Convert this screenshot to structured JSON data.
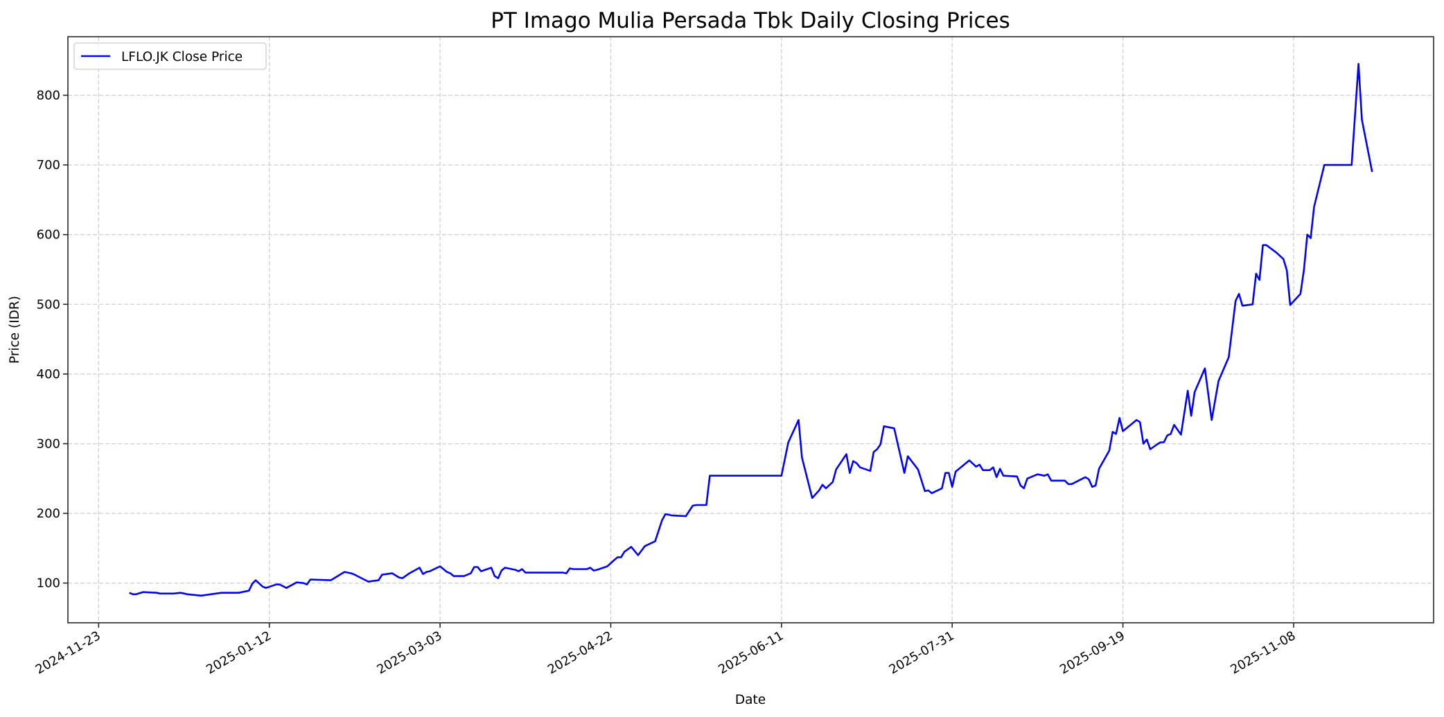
{
  "chart_data": {
    "type": "line",
    "title": "PT Imago Mulia Persada Tbk Daily Closing Prices",
    "xlabel": "Date",
    "ylabel": "Price (IDR)",
    "grid": true,
    "legend_position": "upper left",
    "xlim": [
      "2024-11-14",
      "2025-12-19"
    ],
    "ylim": [
      43,
      884
    ],
    "x_ticks": [
      "2024-11-23",
      "2025-01-12",
      "2025-03-03",
      "2025-04-22",
      "2025-06-11",
      "2025-07-31",
      "2025-09-19",
      "2025-11-08"
    ],
    "y_ticks": [
      100,
      200,
      300,
      400,
      500,
      600,
      700,
      800
    ],
    "series": [
      {
        "name": "LFLO.JK Close Price",
        "color": "#0000ff",
        "x": [
          "2024-12-02",
          "2024-12-03",
          "2024-12-04",
          "2024-12-06",
          "2024-12-10",
          "2024-12-11",
          "2024-12-13",
          "2024-12-15",
          "2024-12-17",
          "2024-12-19",
          "2024-12-23",
          "2024-12-29",
          "2025-01-03",
          "2025-01-06",
          "2025-01-07",
          "2025-01-08",
          "2025-01-10",
          "2025-01-11",
          "2025-01-14",
          "2025-01-15",
          "2025-01-17",
          "2025-01-20",
          "2025-01-22",
          "2025-01-23",
          "2025-01-24",
          "2025-01-30",
          "2025-02-03",
          "2025-02-05",
          "2025-02-06",
          "2025-02-10",
          "2025-02-13",
          "2025-02-14",
          "2025-02-17",
          "2025-02-19",
          "2025-02-20",
          "2025-02-22",
          "2025-02-25",
          "2025-02-26",
          "2025-02-27",
          "2025-02-28",
          "2025-03-03",
          "2025-03-05",
          "2025-03-06",
          "2025-03-07",
          "2025-03-10",
          "2025-03-12",
          "2025-03-13",
          "2025-03-14",
          "2025-03-15",
          "2025-03-18",
          "2025-03-19",
          "2025-03-20",
          "2025-03-21",
          "2025-03-22",
          "2025-03-25",
          "2025-03-26",
          "2025-03-27",
          "2025-03-28",
          "2025-04-08",
          "2025-04-09",
          "2025-04-10",
          "2025-04-11",
          "2025-04-15",
          "2025-04-16",
          "2025-04-17",
          "2025-04-18",
          "2025-04-21",
          "2025-04-23",
          "2025-04-24",
          "2025-04-25",
          "2025-04-26",
          "2025-04-28",
          "2025-04-30",
          "2025-05-02",
          "2025-05-05",
          "2025-05-07",
          "2025-05-08",
          "2025-05-10",
          "2025-05-14",
          "2025-05-16",
          "2025-05-17",
          "2025-05-20",
          "2025-05-21",
          "2025-06-11",
          "2025-06-13",
          "2025-06-16",
          "2025-06-17",
          "2025-06-20",
          "2025-06-22",
          "2025-06-23",
          "2025-06-24",
          "2025-06-26",
          "2025-06-27",
          "2025-06-30",
          "2025-07-01",
          "2025-07-02",
          "2025-07-03",
          "2025-07-04",
          "2025-07-07",
          "2025-07-08",
          "2025-07-09",
          "2025-07-10",
          "2025-07-11",
          "2025-07-14",
          "2025-07-17",
          "2025-07-18",
          "2025-07-21",
          "2025-07-23",
          "2025-07-24",
          "2025-07-25",
          "2025-07-28",
          "2025-07-29",
          "2025-07-30",
          "2025-07-31",
          "2025-08-01",
          "2025-08-05",
          "2025-08-07",
          "2025-08-08",
          "2025-08-09",
          "2025-08-11",
          "2025-08-12",
          "2025-08-13",
          "2025-08-14",
          "2025-08-15",
          "2025-08-19",
          "2025-08-20",
          "2025-08-21",
          "2025-08-22",
          "2025-08-25",
          "2025-08-27",
          "2025-08-28",
          "2025-08-29",
          "2025-09-01",
          "2025-09-02",
          "2025-09-03",
          "2025-09-04",
          "2025-09-08",
          "2025-09-09",
          "2025-09-10",
          "2025-09-11",
          "2025-09-12",
          "2025-09-15",
          "2025-09-16",
          "2025-09-17",
          "2025-09-18",
          "2025-09-19",
          "2025-09-23",
          "2025-09-24",
          "2025-09-25",
          "2025-09-26",
          "2025-09-27",
          "2025-09-29",
          "2025-09-30",
          "2025-10-01",
          "2025-10-02",
          "2025-10-03",
          "2025-10-04",
          "2025-10-06",
          "2025-10-08",
          "2025-10-09",
          "2025-10-10",
          "2025-10-13",
          "2025-10-15",
          "2025-10-17",
          "2025-10-20",
          "2025-10-22",
          "2025-10-23",
          "2025-10-24",
          "2025-10-27",
          "2025-10-28",
          "2025-10-29",
          "2025-10-30",
          "2025-10-31",
          "2025-11-03",
          "2025-11-05",
          "2025-11-06",
          "2025-11-07",
          "2025-11-10",
          "2025-11-11",
          "2025-11-12",
          "2025-11-13",
          "2025-11-14",
          "2025-11-17",
          "2025-11-25",
          "2025-11-27",
          "2025-11-28",
          "2025-12-01"
        ],
        "values": [
          86,
          84,
          84,
          87,
          86,
          85,
          85,
          85,
          86,
          84,
          82,
          86,
          86,
          89,
          99,
          104,
          95,
          93,
          98,
          98,
          93,
          101,
          100,
          98,
          105,
          104,
          116,
          114,
          112,
          102,
          104,
          112,
          114,
          108,
          107,
          114,
          122,
          113,
          116,
          117,
          124,
          116,
          114,
          110,
          110,
          114,
          123,
          123,
          117,
          122,
          110,
          107,
          118,
          122,
          119,
          117,
          120,
          115,
          115,
          114,
          121,
          120,
          120,
          122,
          118,
          119,
          124,
          133,
          137,
          137,
          145,
          152,
          140,
          153,
          160,
          190,
          199,
          197,
          196,
          211,
          212,
          212,
          254,
          254,
          302,
          334,
          280,
          222,
          233,
          241,
          236,
          245,
          263,
          285,
          258,
          275,
          272,
          266,
          261,
          288,
          292,
          299,
          325,
          322,
          258,
          282,
          263,
          232,
          233,
          229,
          236,
          258,
          258,
          238,
          260,
          276,
          267,
          270,
          262,
          262,
          266,
          252,
          264,
          254,
          253,
          240,
          236,
          250,
          256,
          254,
          256,
          247,
          247,
          247,
          242,
          242,
          252,
          249,
          238,
          240,
          264,
          290,
          317,
          314,
          337,
          318,
          334,
          331,
          300,
          306,
          292,
          299,
          302,
          302,
          312,
          314,
          327,
          313,
          376,
          340,
          374,
          408,
          334,
          390,
          424,
          505,
          515,
          498,
          500,
          544,
          535,
          585,
          585,
          574,
          565,
          549,
          499,
          515,
          549,
          600,
          595,
          640,
          700,
          700,
          845,
          765,
          690
        ]
      }
    ]
  }
}
